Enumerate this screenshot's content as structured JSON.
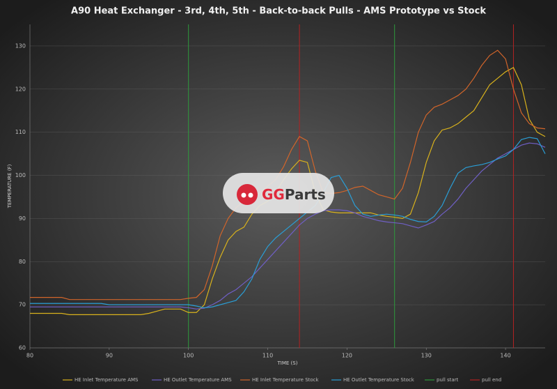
{
  "chart_data": {
    "type": "line",
    "title": "A90 Heat Exchanger - 3rd, 4th, 5th - Back-to-back Pulls - AMS Prototype vs Stock",
    "x_label": "TIME (S)",
    "y_label": "TEMPERATURE (F)",
    "watermark": {
      "accent": "GG",
      "text": "Parts"
    },
    "xlim": [
      80,
      145
    ],
    "xticks": [
      80,
      90,
      100,
      110,
      120,
      130,
      140
    ],
    "ylim": [
      60,
      135
    ],
    "yticks": [
      60,
      70,
      80,
      90,
      100,
      110,
      120,
      130
    ],
    "grid": true,
    "legend": "bottom",
    "x": [
      80,
      81,
      82,
      83,
      84,
      85,
      86,
      87,
      88,
      89,
      90,
      91,
      92,
      93,
      94,
      95,
      96,
      97,
      98,
      99,
      100,
      101,
      102,
      103,
      104,
      105,
      106,
      107,
      108,
      109,
      110,
      111,
      112,
      113,
      114,
      115,
      116,
      117,
      118,
      119,
      120,
      121,
      122,
      123,
      124,
      125,
      126,
      127,
      128,
      129,
      130,
      131,
      132,
      133,
      134,
      135,
      136,
      137,
      138,
      139,
      140,
      141,
      142,
      143,
      144,
      145
    ],
    "series": [
      {
        "name": "HE Inlet Temperature AMS",
        "color": "#d9b21c",
        "values": [
          68,
          68,
          68,
          68,
          68,
          67.7,
          67.7,
          67.7,
          67.7,
          67.7,
          67.7,
          67.7,
          67.7,
          67.7,
          67.7,
          68,
          68.5,
          69,
          69,
          69,
          68.2,
          68.2,
          70,
          76,
          81,
          85,
          87,
          88,
          91,
          93,
          94,
          96,
          99,
          101.5,
          103.5,
          103,
          96,
          92,
          91.5,
          91.3,
          91.3,
          91.3,
          91.3,
          91.3,
          90.8,
          90.5,
          90.3,
          90,
          91,
          96,
          103,
          108,
          110.5,
          111,
          112,
          113.5,
          115,
          118,
          121,
          122.5,
          124,
          125,
          121,
          113,
          110,
          109
        ]
      },
      {
        "name": "HE Outlet Temperature AMS",
        "color": "#6f5fc4",
        "values": [
          69.5,
          69.5,
          69.5,
          69.5,
          69.5,
          69.5,
          69.5,
          69.5,
          69.5,
          69.5,
          69.5,
          69.5,
          69.5,
          69.5,
          69.5,
          69.5,
          69.5,
          69.5,
          69.5,
          69.5,
          69.3,
          69,
          69.2,
          70,
          71,
          72.5,
          73.5,
          75,
          76.5,
          78.5,
          80.5,
          82.5,
          84.5,
          86.5,
          88.5,
          90,
          91,
          91.8,
          92,
          92,
          91.8,
          91.3,
          90.5,
          90,
          89.5,
          89.2,
          89,
          88.8,
          88.3,
          87.8,
          88.5,
          89.3,
          91,
          92.5,
          94.5,
          97,
          99,
          101,
          102.5,
          104,
          105,
          106,
          107,
          107.5,
          107.3,
          106.5
        ]
      },
      {
        "name": "HE Inlet Temperature Stock",
        "color": "#d2652a",
        "values": [
          71.7,
          71.7,
          71.7,
          71.7,
          71.7,
          71.2,
          71.2,
          71.2,
          71.2,
          71.2,
          71.2,
          71.2,
          71.2,
          71.2,
          71.2,
          71.2,
          71.2,
          71.2,
          71.2,
          71.2,
          71.5,
          71.7,
          73.5,
          79,
          86,
          90,
          92.5,
          94,
          95,
          96,
          97.5,
          99,
          102,
          106,
          109,
          108,
          101,
          96,
          95.8,
          96,
          96.5,
          97.2,
          97.5,
          96.5,
          95.5,
          95,
          94.5,
          97,
          103,
          110,
          114,
          115.8,
          116.5,
          117.5,
          118.5,
          120,
          122.5,
          125.5,
          127.8,
          129,
          127,
          120,
          114.5,
          112,
          111,
          110.8
        ]
      },
      {
        "name": "HE Outlet Temperature Stock",
        "color": "#2a9ed6",
        "values": [
          70.3,
          70.3,
          70.3,
          70.3,
          70.3,
          70.3,
          70.3,
          70.3,
          70.3,
          70.3,
          70,
          70,
          70,
          70,
          70,
          70,
          70,
          70,
          70,
          70,
          70,
          69.7,
          69.3,
          69.5,
          70,
          70.5,
          71,
          73,
          76,
          80.5,
          83.5,
          85.5,
          87,
          88.5,
          90,
          91.5,
          93,
          96,
          99.5,
          100,
          97,
          93,
          91,
          90.5,
          90.8,
          91,
          90.8,
          90.5,
          89.8,
          89.3,
          89.2,
          90.5,
          93,
          97,
          100.5,
          101.8,
          102.2,
          102.5,
          103,
          103.8,
          104.5,
          106,
          108.3,
          108.8,
          108.5,
          105
        ]
      }
    ],
    "vlines": [
      {
        "name": "pull start",
        "color": "#2e9a3c",
        "x": [
          100,
          126
        ]
      },
      {
        "name": "pull end",
        "color": "#b42222",
        "x": [
          114,
          141
        ]
      }
    ]
  }
}
